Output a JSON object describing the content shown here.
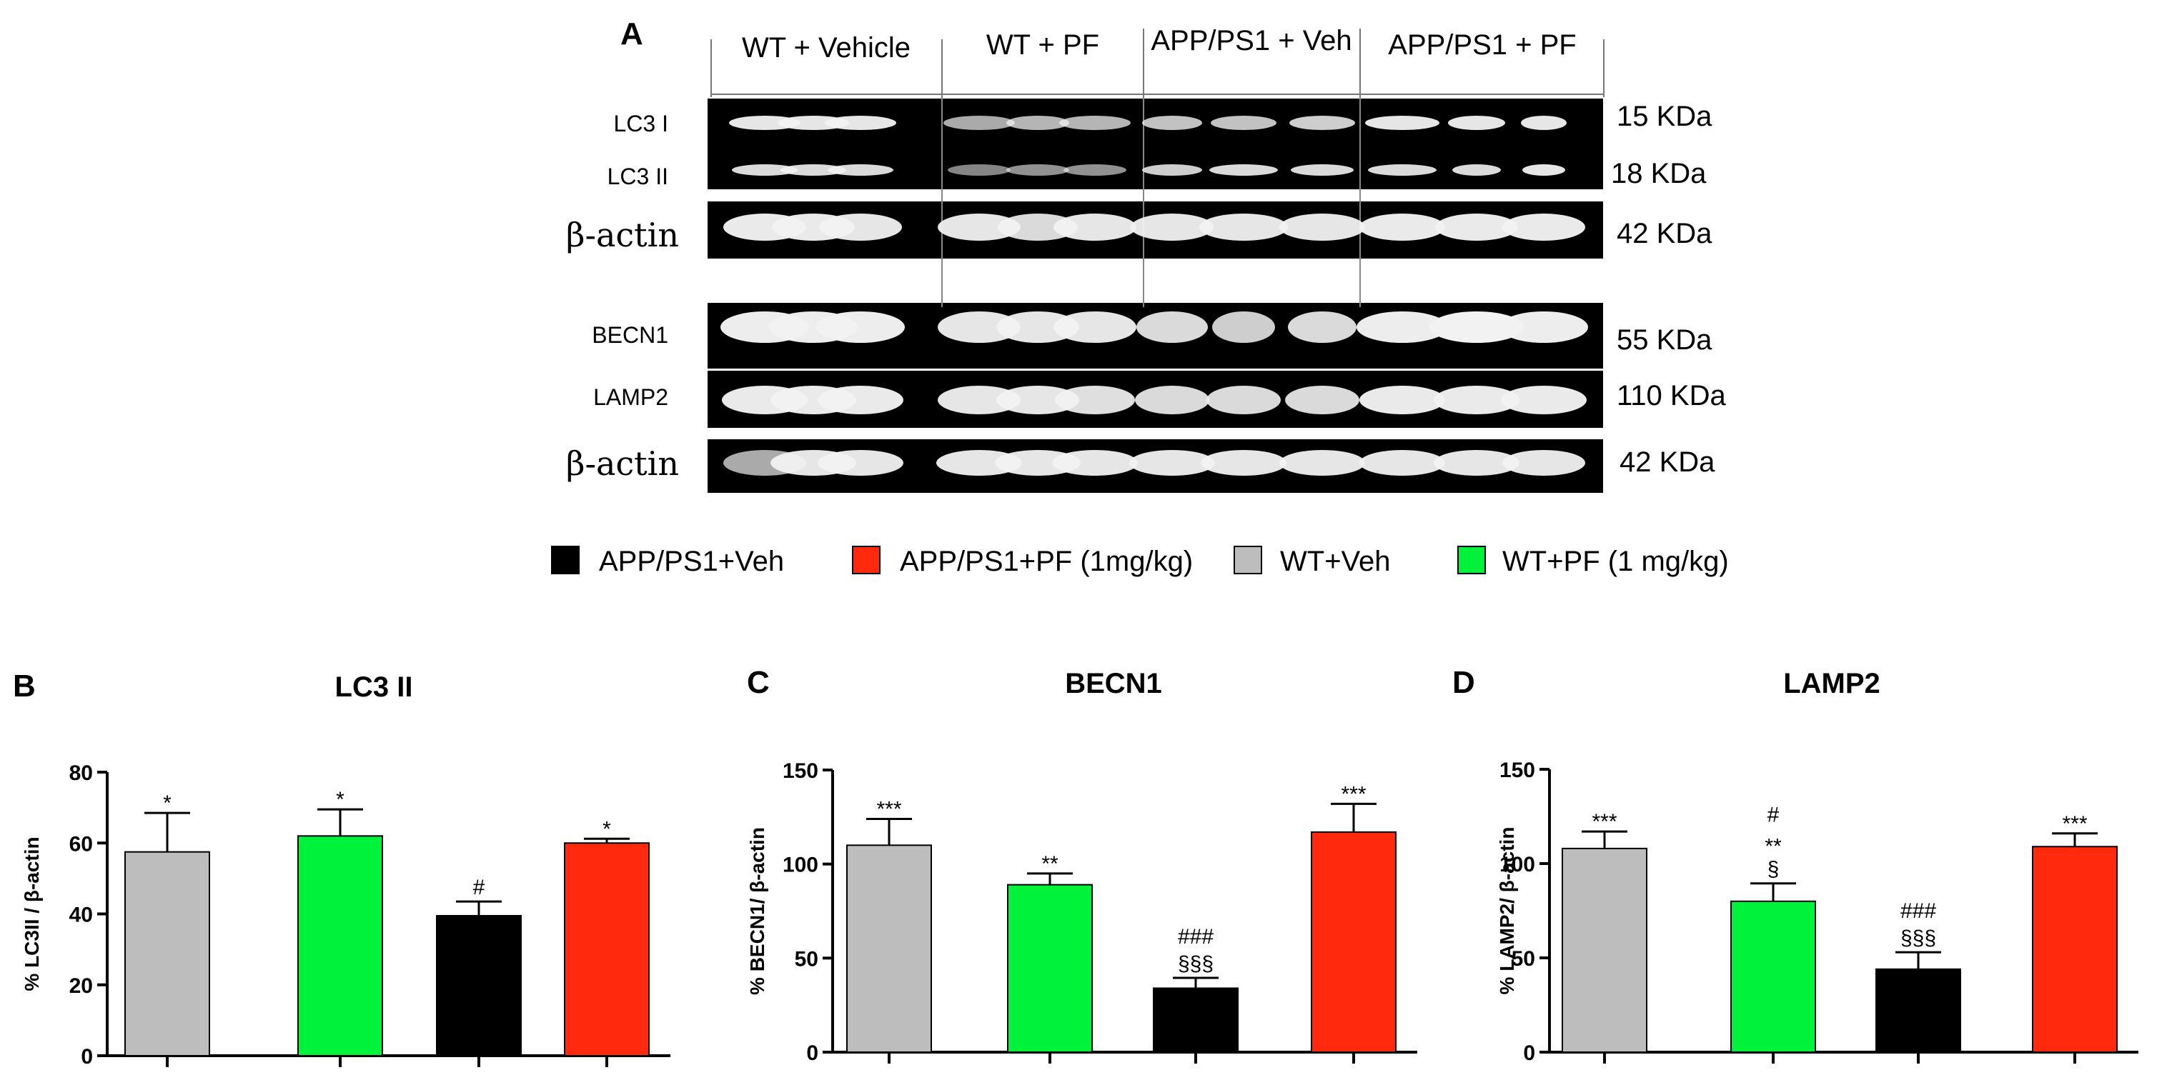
{
  "panel_letters": {
    "a": "A",
    "b": "B",
    "c": "C",
    "d": "D"
  },
  "blot": {
    "groups": [
      "WT + Vehicle",
      "WT + PF",
      "APP/PS1 + Veh",
      "APP/PS1 + PF"
    ],
    "row_labels": {
      "lc3i": "LC3 I",
      "lc3ii": "LC3 II",
      "actin_top": "β-actin",
      "becn1": "BECN1",
      "lamp2": "LAMP2",
      "actin_bottom": "β-actin"
    },
    "sizes": {
      "lc3i": "15 KDa",
      "lc3ii": "18 KDa",
      "actin_top": "42 KDa",
      "becn1": "55 KDa",
      "lamp2": "110 KDa",
      "actin_bottom": "42 KDa"
    },
    "colors": {
      "background": "#000000",
      "band": "#f2f2f2"
    }
  },
  "legend": [
    {
      "label": "APP/PS1+Veh",
      "color": "#000000"
    },
    {
      "label": "APP/PS1+PF (1mg/kg)",
      "color": "#ff2a0d"
    },
    {
      "label": "WT+Veh",
      "color": "#bdbdbd"
    },
    {
      "label": "WT+PF (1 mg/kg)",
      "color": "#00f23a"
    }
  ],
  "chart_data": [
    {
      "type": "bar",
      "title": "LC3 II",
      "ylabel": "% LC3II / β-actin",
      "ylim": [
        0,
        80
      ],
      "yticks": [
        0,
        20,
        40,
        60,
        80
      ],
      "categories": [
        "WT+Veh",
        "WT+PF (1 mg/kg)",
        "APP/PS1+Veh",
        "APP/PS1+PF (1mg/kg)"
      ],
      "values": [
        57.5,
        62,
        39.5,
        60
      ],
      "errors": [
        11,
        7.5,
        4,
        1.2
      ],
      "colors": [
        "#bdbdbd",
        "#00f23a",
        "#000000",
        "#ff2a0d"
      ],
      "annotations": [
        [
          "*"
        ],
        [
          "*"
        ],
        [
          "#"
        ],
        [
          "*"
        ]
      ]
    },
    {
      "type": "bar",
      "title": "BECN1",
      "ylabel": "% BECN1/ β-actin",
      "ylim": [
        0,
        150
      ],
      "yticks": [
        0,
        50,
        100,
        150
      ],
      "categories": [
        "WT+Veh",
        "WT+PF (1 mg/kg)",
        "APP/PS1+Veh",
        "APP/PS1+PF (1mg/kg)"
      ],
      "values": [
        110,
        89,
        34,
        117
      ],
      "errors": [
        14,
        6,
        5.5,
        15
      ],
      "colors": [
        "#bdbdbd",
        "#00f23a",
        "#000000",
        "#ff2a0d"
      ],
      "annotations": [
        [
          "***"
        ],
        [
          "**"
        ],
        [
          "###",
          "§§§"
        ],
        [
          "***"
        ]
      ]
    },
    {
      "type": "bar",
      "title": "LAMP2",
      "ylabel": "% LAMP2/ β-actin",
      "ylim": [
        0,
        150
      ],
      "yticks": [
        0,
        50,
        100,
        150
      ],
      "categories": [
        "WT+Veh",
        "WT+PF (1 mg/kg)",
        "APP/PS1+Veh",
        "APP/PS1+PF (1mg/kg)"
      ],
      "values": [
        108,
        80,
        44,
        109
      ],
      "errors": [
        9,
        9.5,
        9,
        7
      ],
      "colors": [
        "#bdbdbd",
        "#00f23a",
        "#000000",
        "#ff2a0d"
      ],
      "annotations": [
        [
          "***"
        ],
        [
          "#",
          "**",
          "§"
        ],
        [
          "###",
          "§§§"
        ],
        [
          "***"
        ]
      ]
    }
  ]
}
